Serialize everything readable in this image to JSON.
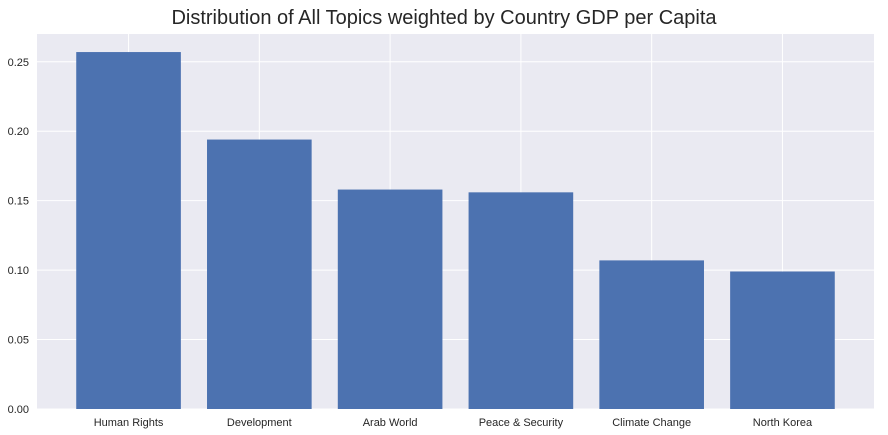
{
  "chart_data": {
    "type": "bar",
    "title": "Distribution of All Topics weighted by Country GDP per Capita",
    "xlabel": "",
    "ylabel": "",
    "categories": [
      "Human Rights",
      "Development",
      "Arab World",
      "Peace & Security",
      "Climate Change",
      "North Korea"
    ],
    "values": [
      0.257,
      0.194,
      0.158,
      0.156,
      0.107,
      0.099
    ],
    "ylim": [
      0,
      0.27
    ],
    "yticks": [
      "0.00",
      "0.05",
      "0.10",
      "0.15",
      "0.20",
      "0.25"
    ],
    "grid": true,
    "legend": "none",
    "colors": {
      "bar": "#4c72b0",
      "plot_background": "#eaeaf2",
      "grid": "#ffffff",
      "text": "#262626"
    }
  }
}
